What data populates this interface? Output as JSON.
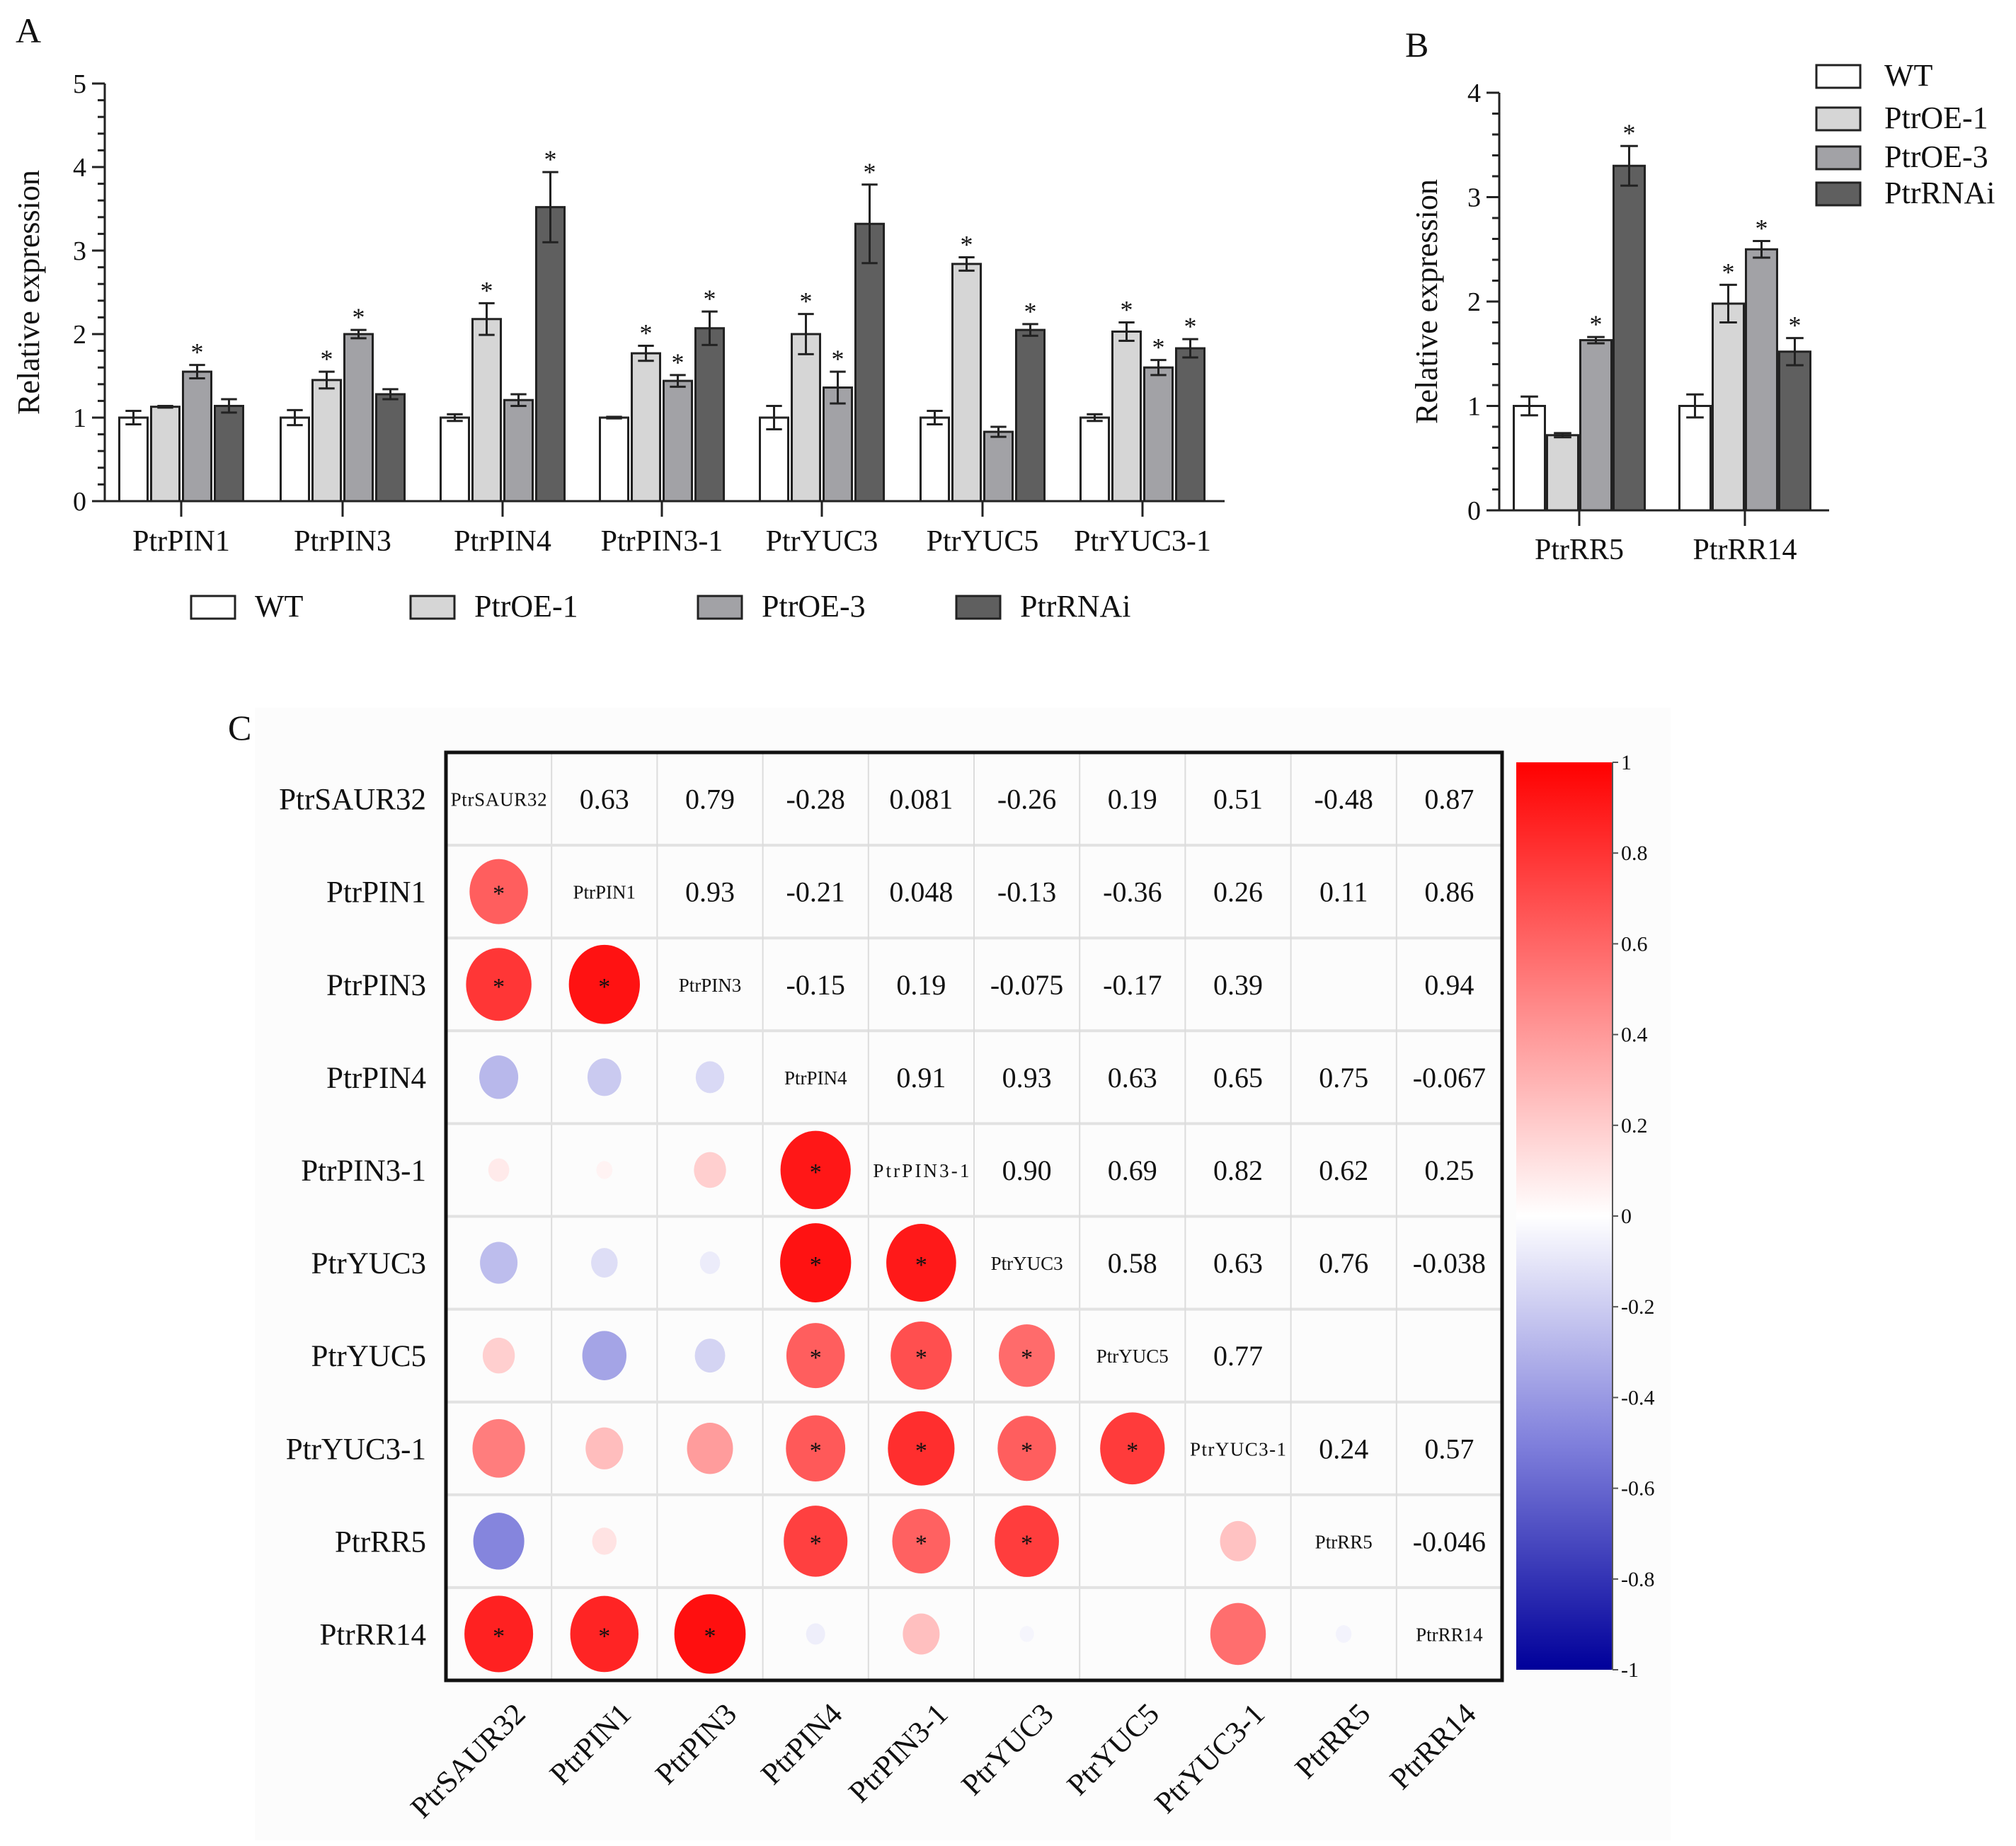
{
  "panel_labels": {
    "a": "A",
    "b": "B",
    "c": "C"
  },
  "chart_data": [
    {
      "type": "bar",
      "panel": "A",
      "title": "",
      "xlabel": "",
      "ylabel": "Relative expression",
      "ylim": [
        0,
        5
      ],
      "yticks": [
        "0",
        "1",
        "2",
        "3",
        "4",
        "5"
      ],
      "grid": false,
      "legend_position": "bottom",
      "categories": [
        "PtrPIN1",
        "PtrPIN3",
        "PtrPIN4",
        "PtrPIN3-1",
        "PtrYUC3",
        "PtrYUC5",
        "PtrYUC3-1"
      ],
      "series": [
        {
          "name": "WT",
          "color": "#ffffff",
          "values": [
            1.0,
            1.0,
            1.0,
            1.0,
            1.0,
            1.0,
            1.0
          ],
          "errors": [
            0.08,
            0.09,
            0.04,
            0.01,
            0.14,
            0.08,
            0.04
          ],
          "significant": [
            false,
            false,
            false,
            false,
            false,
            false,
            false
          ]
        },
        {
          "name": "PtrOE-1",
          "color": "#d6d6d6",
          "values": [
            1.13,
            1.45,
            2.18,
            1.77,
            2.0,
            2.84,
            2.03
          ],
          "errors": [
            0.01,
            0.1,
            0.19,
            0.09,
            0.24,
            0.08,
            0.11
          ],
          "significant": [
            false,
            true,
            true,
            true,
            true,
            true,
            true
          ]
        },
        {
          "name": "PtrOE-3",
          "color": "#a2a2a6",
          "values": [
            1.55,
            2.0,
            1.21,
            1.44,
            1.36,
            0.83,
            1.6
          ],
          "errors": [
            0.08,
            0.05,
            0.07,
            0.07,
            0.19,
            0.06,
            0.09
          ],
          "significant": [
            true,
            true,
            false,
            true,
            true,
            false,
            true
          ]
        },
        {
          "name": "PtrRNAi",
          "color": "#5f5f5f",
          "values": [
            1.14,
            1.28,
            3.52,
            2.07,
            3.32,
            2.05,
            1.83
          ],
          "errors": [
            0.08,
            0.06,
            0.42,
            0.2,
            0.47,
            0.07,
            0.11
          ],
          "significant": [
            false,
            false,
            true,
            true,
            true,
            true,
            true
          ]
        }
      ],
      "significance_mark": "*"
    },
    {
      "type": "bar",
      "panel": "B",
      "title": "",
      "xlabel": "",
      "ylabel": "Relative expression",
      "ylim": [
        0,
        4
      ],
      "yticks": [
        "0",
        "1",
        "2",
        "3",
        "4"
      ],
      "grid": false,
      "legend_position": "top-right",
      "categories": [
        "PtrRR5",
        "PtrRR14"
      ],
      "series": [
        {
          "name": "WT",
          "color": "#ffffff",
          "values": [
            1.0,
            1.0
          ],
          "errors": [
            0.09,
            0.11
          ],
          "significant": [
            false,
            false
          ]
        },
        {
          "name": "PtrOE-1",
          "color": "#d6d6d6",
          "values": [
            0.72,
            1.98
          ],
          "errors": [
            0.02,
            0.18
          ],
          "significant": [
            false,
            true
          ]
        },
        {
          "name": "PtrOE-3",
          "color": "#a2a2a6",
          "values": [
            1.63,
            2.5
          ],
          "errors": [
            0.03,
            0.08
          ],
          "significant": [
            true,
            true
          ]
        },
        {
          "name": "PtrRNAi",
          "color": "#5f5f5f",
          "values": [
            3.3,
            1.52
          ],
          "errors": [
            0.19,
            0.13
          ],
          "significant": [
            true,
            true
          ]
        }
      ],
      "significance_mark": "*"
    },
    {
      "type": "heatmap",
      "panel": "C",
      "subtype": "correlation matrix (upper: coefficients, lower: circles)",
      "genes": [
        "PtrSAUR32",
        "PtrPIN1",
        "PtrPIN3",
        "PtrPIN4",
        "PtrPIN3-1",
        "PtrYUC3",
        "PtrYUC5",
        "PtrYUC3-1",
        "PtrRR5",
        "PtrRR14"
      ],
      "upper": [
        [
          null,
          "0.63",
          "0.79",
          "-0.28",
          "0.081",
          "-0.26",
          "0.19",
          "0.51",
          "-0.48",
          "0.87"
        ],
        [
          null,
          null,
          "0.93",
          "-0.21",
          "0.048",
          "-0.13",
          "-0.36",
          "0.26",
          "0.11",
          "0.86"
        ],
        [
          null,
          null,
          null,
          "-0.15",
          "0.19",
          "-0.075",
          "-0.17",
          "0.39",
          null,
          "0.94"
        ],
        [
          null,
          null,
          null,
          null,
          "0.91",
          "0.93",
          "0.63",
          "0.65",
          "0.75",
          "-0.067"
        ],
        [
          null,
          null,
          null,
          null,
          null,
          "0.90",
          "0.69",
          "0.82",
          "0.62",
          "0.25"
        ],
        [
          null,
          null,
          null,
          null,
          null,
          null,
          "0.58",
          "0.63",
          "0.76",
          "-0.038"
        ],
        [
          null,
          null,
          null,
          null,
          null,
          null,
          null,
          "0.77",
          null,
          null
        ],
        [
          null,
          null,
          null,
          null,
          null,
          null,
          null,
          null,
          "0.24",
          "0.57"
        ],
        [
          null,
          null,
          null,
          null,
          null,
          null,
          null,
          null,
          null,
          "-0.046"
        ],
        [
          null,
          null,
          null,
          null,
          null,
          null,
          null,
          null,
          null,
          null
        ]
      ],
      "significant_pairs": [
        [
          1,
          0
        ],
        [
          2,
          0
        ],
        [
          2,
          1
        ],
        [
          4,
          3
        ],
        [
          5,
          3
        ],
        [
          5,
          4
        ],
        [
          6,
          3
        ],
        [
          6,
          4
        ],
        [
          6,
          5
        ],
        [
          7,
          3
        ],
        [
          7,
          4
        ],
        [
          7,
          5
        ],
        [
          7,
          6
        ],
        [
          8,
          3
        ],
        [
          8,
          4
        ],
        [
          8,
          5
        ],
        [
          9,
          0
        ],
        [
          9,
          1
        ],
        [
          9,
          2
        ]
      ],
      "significance_mark": "*",
      "colorbar": {
        "range": [
          -1,
          1
        ],
        "ticks": [
          "1",
          "0.8",
          "0.6",
          "0.4",
          "0.2",
          "0",
          "-0.2",
          "-0.4",
          "-0.6",
          "-0.8",
          "-1"
        ],
        "colors": {
          "neg": "#00009a",
          "mid": "#ffffff",
          "pos": "#ff0000"
        }
      }
    }
  ]
}
